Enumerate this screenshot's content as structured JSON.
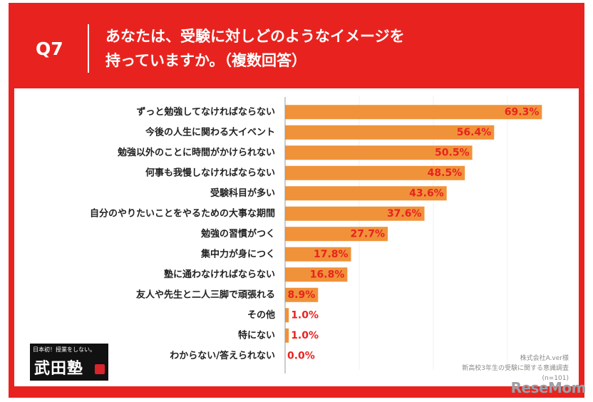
{
  "header": {
    "question": "Q7",
    "title_line1": "あなたは、受験に対しどのようなイメージを",
    "title_line2": "持っていますか。（複数回答）"
  },
  "chart_data": {
    "type": "bar",
    "orientation": "horizontal",
    "categories": [
      "ずっと勉強してなければならない",
      "今後の人生に関わる大イベント",
      "勉強以外のことに時間がかけられない",
      "何事も我慢しなければならない",
      "受験科目が多い",
      "自分のやりたいことをやるための大事な期間",
      "勉強の習慣がつく",
      "集中力が身につく",
      "塾に通わなければならない",
      "友人や先生と二人三脚で頑張れる",
      "その他",
      "特にない",
      "わからない/答えられない"
    ],
    "values": [
      69.3,
      56.4,
      50.5,
      48.5,
      43.6,
      37.6,
      27.7,
      17.8,
      16.8,
      8.9,
      1.0,
      1.0,
      0.0
    ],
    "value_labels": [
      "69.3%",
      "56.4%",
      "50.5%",
      "48.5%",
      "43.6%",
      "37.6%",
      "27.7%",
      "17.8%",
      "16.8%",
      "8.9%",
      "1.0%",
      "1.0%",
      "0.0%"
    ],
    "xlim": [
      0,
      100
    ],
    "bar_color": "#f0923a",
    "label_color": "#e8231f"
  },
  "logo": {
    "tagline": "日本初！授業をしない。",
    "name": "武田塾"
  },
  "source": {
    "line1": "株式会社A.ver様",
    "line2": "新高校3年生の受験に関する意識調査",
    "line3": "(n=101)"
  },
  "watermark": "ReseMom",
  "colors": {
    "frame": "#e8231f",
    "panel": "#ffffff"
  }
}
